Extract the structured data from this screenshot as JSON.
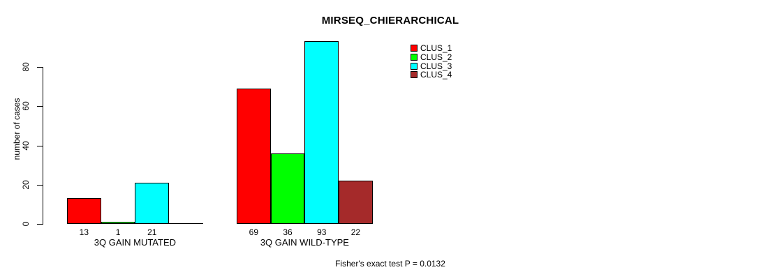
{
  "chart_data": {
    "type": "bar",
    "title": "MIRSEQ_CHIERARCHICAL",
    "ylabel": "number of cases",
    "xlabel": "",
    "ylim": [
      0,
      80
    ],
    "yticks": [
      0,
      20,
      40,
      60,
      80
    ],
    "grid": false,
    "legend_position": "top-right-inside",
    "categories": [
      "3Q GAIN MUTATED",
      "3Q GAIN WILD-TYPE"
    ],
    "series": [
      {
        "name": "CLUS_1",
        "color": "#FF0000",
        "values": [
          13,
          69
        ]
      },
      {
        "name": "CLUS_2",
        "color": "#00FF00",
        "values": [
          1,
          36
        ]
      },
      {
        "name": "CLUS_3",
        "color": "#00FFFF",
        "values": [
          21,
          93
        ]
      },
      {
        "name": "CLUS_4",
        "color": "#A52A2A",
        "values": [
          0,
          22
        ]
      }
    ],
    "value_labels": [
      [
        "13",
        "1",
        "21",
        ""
      ],
      [
        "69",
        "36",
        "93",
        "22"
      ]
    ],
    "bar_border_color": "#000000",
    "annotation": "Fisher's exact test P = 0.0132"
  }
}
